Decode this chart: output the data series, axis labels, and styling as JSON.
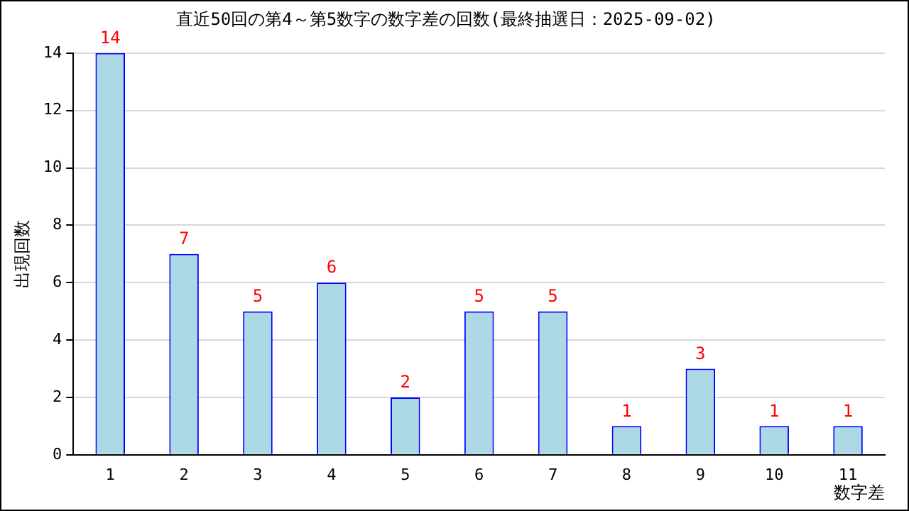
{
  "chart_data": {
    "type": "bar",
    "title": "直近50回の第4～第5数字の数字差の回数(最終抽選日：2025-09-02)",
    "xlabel": "数字差",
    "ylabel": "出現回数",
    "categories": [
      "1",
      "2",
      "3",
      "4",
      "5",
      "6",
      "7",
      "8",
      "9",
      "10",
      "11"
    ],
    "values": [
      14,
      7,
      5,
      6,
      2,
      5,
      5,
      1,
      3,
      1,
      1
    ],
    "color": "#add8e6",
    "ylim": [
      0,
      14
    ],
    "yticks": [
      0,
      2,
      4,
      6,
      8,
      10,
      12,
      14
    ],
    "grid": "y",
    "data_labels": true,
    "legend": false
  }
}
